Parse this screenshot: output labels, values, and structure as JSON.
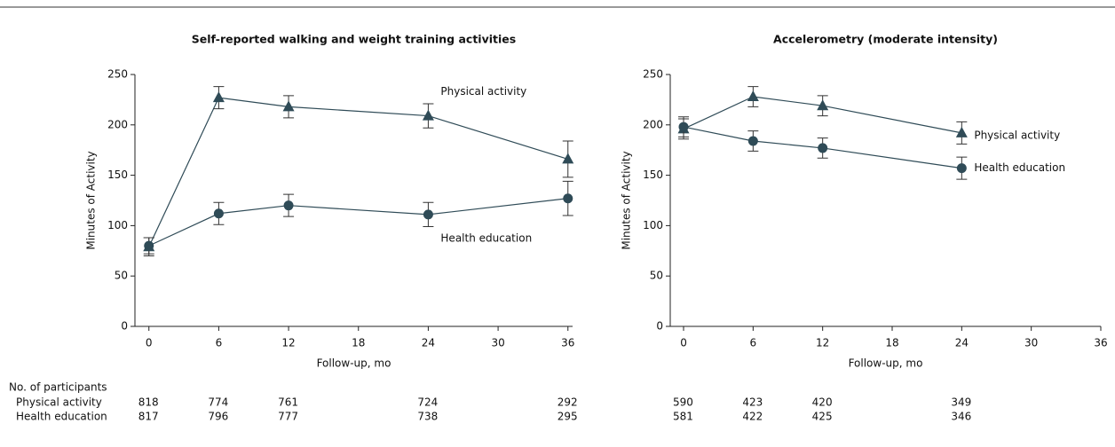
{
  "counts_label": "No. of participants",
  "chart_data": [
    {
      "type": "line",
      "title": "Self-reported walking and weight training activities",
      "x_label": "Follow-up, mo",
      "y_label": "Minutes of Activity",
      "x": [
        0,
        6,
        12,
        24,
        36
      ],
      "series": [
        {
          "name": "Physical activity",
          "color": "#2f4b57",
          "marker": "triangle",
          "values": [
            79,
            227,
            218,
            209,
            166
          ],
          "errors": [
            9,
            11,
            11,
            12,
            18
          ]
        },
        {
          "name": "Health education",
          "color": "#2f4b57",
          "marker": "circle",
          "values": [
            80,
            112,
            120,
            111,
            127
          ],
          "errors": [
            8,
            11,
            11,
            12,
            17
          ]
        }
      ],
      "xlim": [
        -1.2,
        36.4
      ],
      "xticks": [
        0,
        6,
        12,
        18,
        24,
        30,
        36
      ],
      "ylim": [
        0,
        250
      ],
      "yticks": [
        0,
        50,
        100,
        150,
        200,
        250
      ],
      "counts": [
        {
          "name": "Physical activity",
          "values": [
            818,
            774,
            761,
            724,
            292
          ]
        },
        {
          "name": "Health education",
          "values": [
            817,
            796,
            777,
            738,
            295
          ]
        }
      ]
    },
    {
      "type": "line",
      "title": "Accelerometry (moderate intensity)",
      "x_label": "Follow-up, mo",
      "y_label": "Minutes of Activity",
      "x": [
        0,
        6,
        12,
        24
      ],
      "series": [
        {
          "name": "Physical activity",
          "color": "#2f4b57",
          "marker": "triangle",
          "values": [
            196,
            228,
            219,
            192
          ],
          "errors": [
            10,
            10,
            10,
            11
          ]
        },
        {
          "name": "Health education",
          "color": "#2f4b57",
          "marker": "circle",
          "values": [
            198,
            184,
            177,
            157
          ],
          "errors": [
            10,
            10,
            10,
            11
          ]
        }
      ],
      "xlim": [
        -1.15,
        36
      ],
      "xticks": [
        0,
        6,
        12,
        18,
        24,
        30,
        36
      ],
      "ylim": [
        0,
        250
      ],
      "yticks": [
        0,
        50,
        100,
        150,
        200,
        250
      ],
      "counts": [
        {
          "values": [
            590,
            423,
            420,
            349
          ]
        },
        {
          "values": [
            581,
            422,
            425,
            346
          ]
        }
      ]
    }
  ]
}
